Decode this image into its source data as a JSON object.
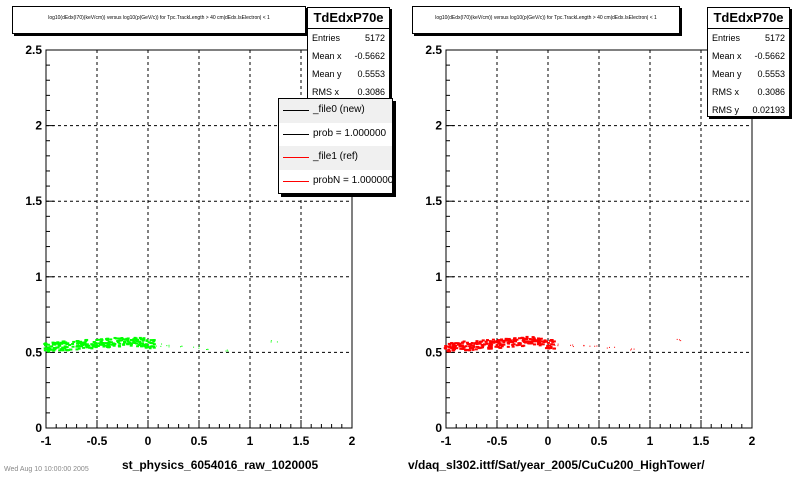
{
  "panels": [
    {
      "title": "log10(dEdx(I70)(keV/cm)) versus log10(p(GeV/c)) for Tpc.TrackLength > 40 cm|dEdx.IsElectron| < 1",
      "stats": {
        "name": "TdEdxP70e",
        "rows": [
          {
            "label": "Entries",
            "value": "5172"
          },
          {
            "label": "Mean x",
            "value": "-0.5662"
          },
          {
            "label": "Mean y",
            "value": "0.5553"
          },
          {
            "label": "RMS x",
            "value": "0.3086"
          }
        ]
      },
      "legend": [
        {
          "label": "_file0 (new)",
          "color": "#000000"
        },
        {
          "label": "prob = 1.000000",
          "color": "#000000"
        },
        {
          "label": "_file1 (ref)",
          "color": "#ff0000"
        },
        {
          "label": "probN = 1.000000",
          "color": "#ff0000"
        }
      ],
      "xlabel": "st_physics_6054016_raw_1020005",
      "color": "#00ff00"
    },
    {
      "title": "log10(dEdx(I70)(keV/cm)) versus log10(p(GeV/c)) for Tpc.TrackLength > 40 cm|dEdx.IsElectron| < 1",
      "stats": {
        "name": "TdEdxP70e",
        "rows": [
          {
            "label": "Entries",
            "value": "5172"
          },
          {
            "label": "Mean x",
            "value": "-0.5662"
          },
          {
            "label": "Mean y",
            "value": "0.5553"
          },
          {
            "label": "RMS x",
            "value": "0.3086"
          },
          {
            "label": "RMS y",
            "value": "0.02193"
          }
        ]
      },
      "xlabel": "v/daq_sl302.ittf/Sat/year_2005/CuCu200_HighTower/",
      "color": "#ff0000"
    }
  ],
  "footer": "Wed Aug 10 10:00:00 2005",
  "chart_data": [
    {
      "type": "scatter",
      "title": "log10(dEdx(I70)(keV/cm)) versus log10(p(GeV/c)) for Tpc.TrackLength > 40 cm|dEdx.IsElectron| < 1",
      "xlabel": "st_physics_6054016_raw_1020005",
      "ylabel": "",
      "xlim": [
        -1,
        2
      ],
      "ylim": [
        0,
        2.5
      ],
      "xticks": [
        "-1",
        "-0.5",
        "0",
        "0.5",
        "1",
        "1.5",
        "2"
      ],
      "yticks": [
        "0",
        "0.5",
        "1",
        "1.5",
        "2",
        "2.5"
      ],
      "grid": true,
      "series": [
        {
          "name": "_file0 (new)",
          "color": "#00ff00",
          "x": [
            -0.98,
            -0.9,
            -0.8,
            -0.7,
            -0.6,
            -0.5,
            -0.4,
            -0.3,
            -0.2,
            -0.1,
            0.0,
            0.1,
            0.2,
            0.3,
            0.45,
            0.6,
            0.8,
            1.25
          ],
          "y": [
            0.54,
            0.545,
            0.55,
            0.555,
            0.56,
            0.565,
            0.57,
            0.575,
            0.58,
            0.575,
            0.56,
            0.55,
            0.545,
            0.54,
            0.54,
            0.53,
            0.52,
            0.58
          ]
        }
      ]
    },
    {
      "type": "scatter",
      "title": "log10(dEdx(I70)(keV/cm)) versus log10(p(GeV/c)) for Tpc.TrackLength > 40 cm|dEdx.IsElectron| < 1",
      "xlabel": "v/daq_sl302.ittf/Sat/year_2005/CuCu200_HighTower/",
      "ylabel": "",
      "xlim": [
        -1,
        2
      ],
      "ylim": [
        0,
        2.5
      ],
      "xticks": [
        "-1",
        "-0.5",
        "0",
        "0.5",
        "1",
        "1.5",
        "2"
      ],
      "yticks": [
        "0",
        "0.5",
        "1",
        "1.5",
        "2",
        "2.5"
      ],
      "grid": true,
      "series": [
        {
          "name": "_file1 (ref)",
          "color": "#ff0000",
          "x": [
            -0.98,
            -0.9,
            -0.8,
            -0.7,
            -0.6,
            -0.5,
            -0.4,
            -0.3,
            -0.2,
            -0.1,
            0.0,
            0.1,
            0.2,
            0.3,
            0.45,
            0.6,
            0.8,
            1.25
          ],
          "y": [
            0.54,
            0.545,
            0.55,
            0.555,
            0.56,
            0.565,
            0.57,
            0.575,
            0.58,
            0.575,
            0.56,
            0.55,
            0.545,
            0.54,
            0.54,
            0.53,
            0.52,
            0.58
          ]
        }
      ]
    }
  ]
}
